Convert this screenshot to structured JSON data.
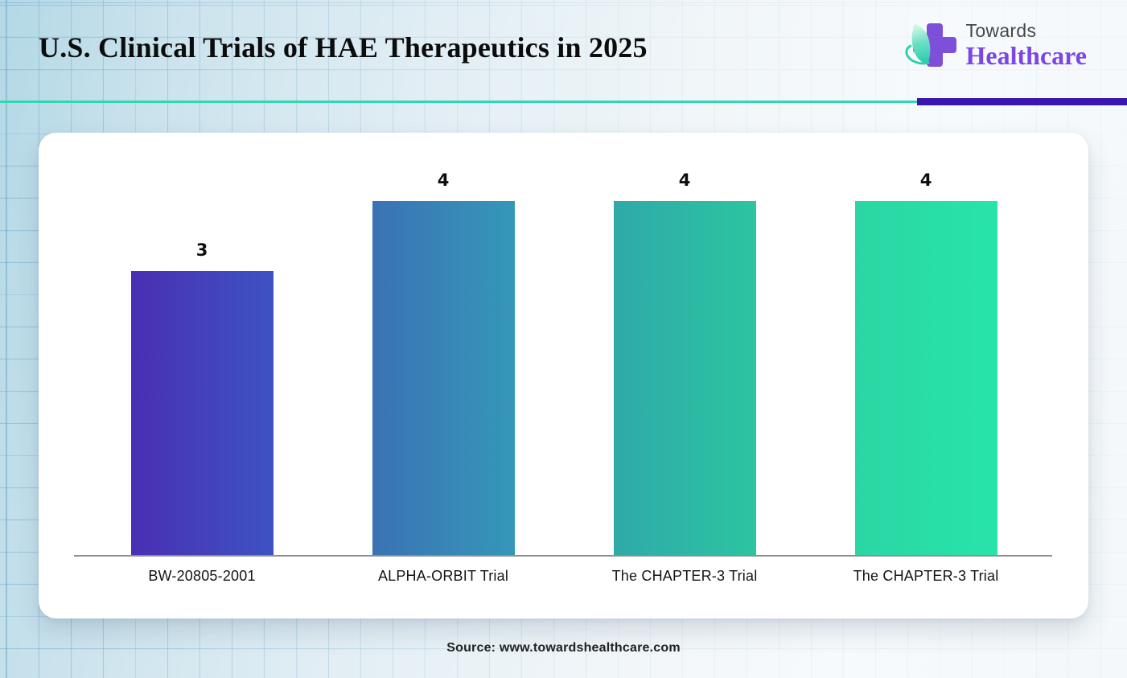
{
  "header": {
    "title": "U.S. Clinical Trials of HAE Therapeutics in 2025",
    "logo": {
      "line1": "Towards",
      "line2": "Healthcare"
    }
  },
  "chart_data": {
    "type": "bar",
    "title": "U.S. Clinical Trials of HAE Therapeutics in 2025",
    "categories": [
      "BW-20805-2001",
      "ALPHA-ORBIT Trial",
      "The CHAPTER-3 Trial",
      "The CHAPTER-3 Trial"
    ],
    "values": [
      3,
      4,
      4,
      4
    ],
    "data_labels": [
      "3",
      "4",
      "4",
      "4"
    ],
    "xlabel": "",
    "ylabel": "",
    "ylim": [
      0,
      4
    ],
    "grid": false,
    "legend": false,
    "bar_gradients": [
      [
        "#4A2FB2",
        "#3D52C3"
      ],
      [
        "#3A72B4",
        "#3697B9"
      ],
      [
        "#2FA9A9",
        "#2CC5A0"
      ],
      [
        "#2BD6A4",
        "#27E4AA"
      ]
    ],
    "axis_line_color": "#8F8F8F",
    "value_label_color": "#0D0D0D"
  },
  "footer": {
    "source": "Source: www.towardshealthcare.com"
  },
  "colors": {
    "accent_teal": "#2ED8B4",
    "accent_purple": "#3916AE",
    "logo_cross_purple": "#7E4FD8",
    "logo_leaf_teal": "#2FCEAE",
    "logo_text_gray": "#474747",
    "logo_text_purple": "#7B45E8"
  }
}
